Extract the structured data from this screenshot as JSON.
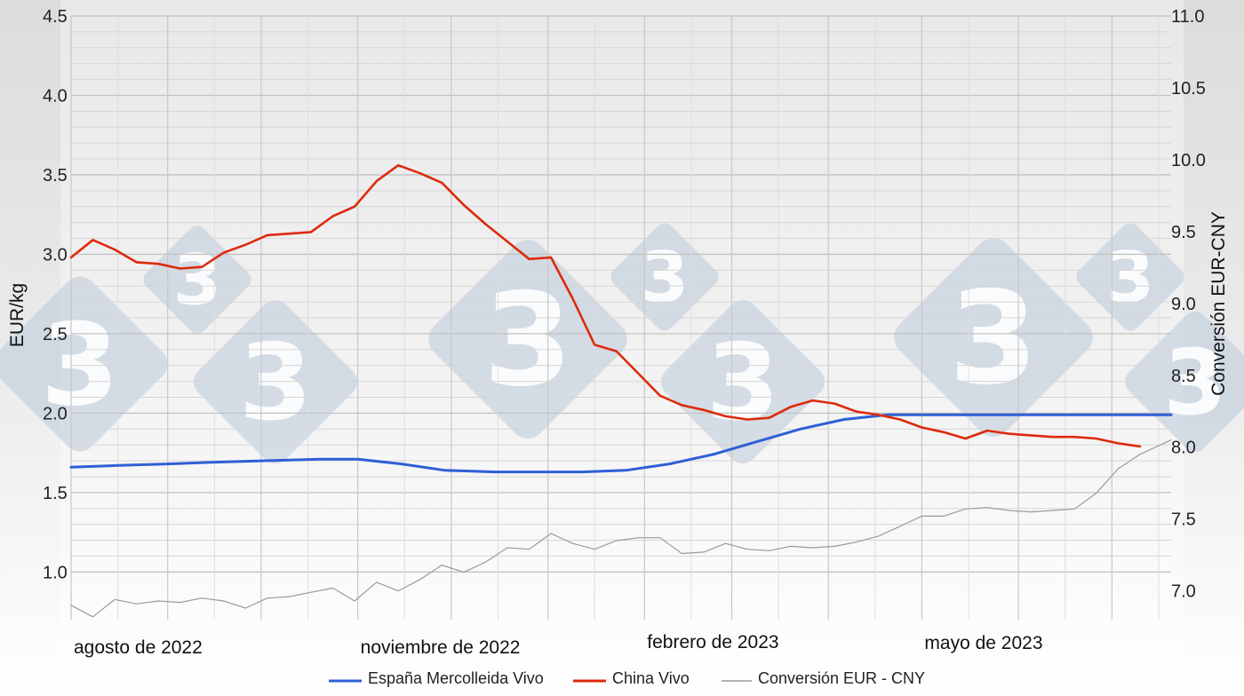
{
  "chart_data": {
    "type": "line",
    "title": "",
    "ylabel_left": "EUR/kg",
    "ylabel_right": "Conversión EUR-CNY",
    "ylim_left": [
      0.7,
      4.5
    ],
    "ylim_right": [
      6.8,
      11.0
    ],
    "yticks_left": [
      "1.0",
      "1.5",
      "2.0",
      "2.5",
      "3.0",
      "3.5",
      "4.0",
      "4.5"
    ],
    "yticks_right": [
      "7.0",
      "7.5",
      "8.0",
      "8.5",
      "9.0",
      "9.5",
      "10.0",
      "10.5",
      "11.0"
    ],
    "xlim": [
      "2022-08-01",
      "2023-07-20"
    ],
    "xtick_labels": [
      {
        "date": "2022-08-01",
        "label": "agosto de 2022"
      },
      {
        "date": "2022-11-01",
        "label": "noviembre de 2022"
      },
      {
        "date": "2023-02-01",
        "label": "febrero de 2023"
      },
      {
        "date": "2023-05-01",
        "label": "mayo de 2023"
      }
    ],
    "grid": true,
    "legend_position": "bottom",
    "watermark": "3",
    "series": [
      {
        "name": "España Mercolleida Vivo",
        "axis": "left",
        "color": "#2f5fd6",
        "x": [
          "2022-08-01",
          "2022-08-15",
          "2022-09-01",
          "2022-09-15",
          "2022-10-01",
          "2022-10-20",
          "2022-11-01",
          "2022-11-15",
          "2022-11-29",
          "2022-12-15",
          "2022-12-29",
          "2023-01-12",
          "2023-01-26",
          "2023-02-09",
          "2023-02-23",
          "2023-03-09",
          "2023-03-23",
          "2023-04-06",
          "2023-04-20",
          "2023-05-04",
          "2023-05-18",
          "2023-06-01",
          "2023-06-15",
          "2023-06-29",
          "2023-07-13",
          "2023-07-20"
        ],
        "y": [
          1.66,
          1.67,
          1.68,
          1.69,
          1.7,
          1.71,
          1.71,
          1.68,
          1.64,
          1.63,
          1.63,
          1.63,
          1.64,
          1.68,
          1.74,
          1.82,
          1.9,
          1.96,
          1.99,
          1.99,
          1.99,
          1.99,
          1.99,
          1.99,
          1.99,
          1.99
        ]
      },
      {
        "name": "China Vivo",
        "axis": "left",
        "color": "#dd2a0c",
        "x": [
          "2022-08-01",
          "2022-08-08",
          "2022-08-15",
          "2022-08-22",
          "2022-08-29",
          "2022-09-05",
          "2022-09-12",
          "2022-09-19",
          "2022-09-26",
          "2022-10-03",
          "2022-10-10",
          "2022-10-17",
          "2022-10-24",
          "2022-10-31",
          "2022-11-07",
          "2022-11-14",
          "2022-11-21",
          "2022-11-28",
          "2022-12-05",
          "2022-12-12",
          "2022-12-19",
          "2022-12-26",
          "2023-01-02",
          "2023-01-09",
          "2023-01-16",
          "2023-01-23",
          "2023-01-30",
          "2023-02-06",
          "2023-02-13",
          "2023-02-20",
          "2023-02-27",
          "2023-03-06",
          "2023-03-13",
          "2023-03-20",
          "2023-03-27",
          "2023-04-03",
          "2023-04-10",
          "2023-04-17",
          "2023-04-24",
          "2023-05-01",
          "2023-05-08",
          "2023-05-15",
          "2023-05-22",
          "2023-05-29",
          "2023-06-05",
          "2023-06-12",
          "2023-06-19",
          "2023-06-26",
          "2023-07-03",
          "2023-07-10"
        ],
        "y": [
          2.98,
          3.09,
          3.03,
          2.95,
          2.94,
          2.91,
          2.92,
          3.01,
          3.06,
          3.12,
          3.13,
          3.14,
          3.24,
          3.3,
          3.46,
          3.56,
          3.51,
          3.45,
          3.31,
          3.19,
          3.08,
          2.97,
          2.98,
          2.72,
          2.43,
          2.39,
          2.25,
          2.11,
          2.05,
          2.02,
          1.98,
          1.96,
          1.97,
          2.04,
          2.08,
          2.06,
          2.01,
          1.99,
          1.96,
          1.91,
          1.88,
          1.84,
          1.89,
          1.87,
          1.86,
          1.85,
          1.85,
          1.84,
          1.81,
          1.79
        ]
      },
      {
        "name": "Conversión EUR - CNY",
        "axis": "right",
        "color": "#9a9a9a",
        "x": [
          "2022-08-01",
          "2022-08-08",
          "2022-08-15",
          "2022-08-22",
          "2022-08-29",
          "2022-09-05",
          "2022-09-12",
          "2022-09-19",
          "2022-09-26",
          "2022-10-03",
          "2022-10-10",
          "2022-10-17",
          "2022-10-24",
          "2022-10-31",
          "2022-11-07",
          "2022-11-14",
          "2022-11-21",
          "2022-11-28",
          "2022-12-05",
          "2022-12-12",
          "2022-12-19",
          "2022-12-26",
          "2023-01-02",
          "2023-01-09",
          "2023-01-16",
          "2023-01-23",
          "2023-01-30",
          "2023-02-06",
          "2023-02-13",
          "2023-02-20",
          "2023-02-27",
          "2023-03-06",
          "2023-03-13",
          "2023-03-20",
          "2023-03-27",
          "2023-04-03",
          "2023-04-10",
          "2023-04-17",
          "2023-04-24",
          "2023-05-01",
          "2023-05-08",
          "2023-05-15",
          "2023-05-22",
          "2023-05-29",
          "2023-06-05",
          "2023-06-12",
          "2023-06-19",
          "2023-06-26",
          "2023-07-03",
          "2023-07-10",
          "2023-07-20"
        ],
        "y": [
          6.9,
          6.82,
          6.94,
          6.91,
          6.93,
          6.92,
          6.95,
          6.93,
          6.88,
          6.95,
          6.96,
          6.99,
          7.02,
          6.93,
          7.06,
          7.0,
          7.08,
          7.18,
          7.13,
          7.2,
          7.3,
          7.29,
          7.4,
          7.33,
          7.29,
          7.35,
          7.37,
          7.37,
          7.26,
          7.27,
          7.33,
          7.29,
          7.28,
          7.31,
          7.3,
          7.31,
          7.34,
          7.38,
          7.45,
          7.52,
          7.52,
          7.57,
          7.58,
          7.56,
          7.55,
          7.56,
          7.57,
          7.68,
          7.85,
          7.95,
          8.05
        ]
      }
    ]
  }
}
